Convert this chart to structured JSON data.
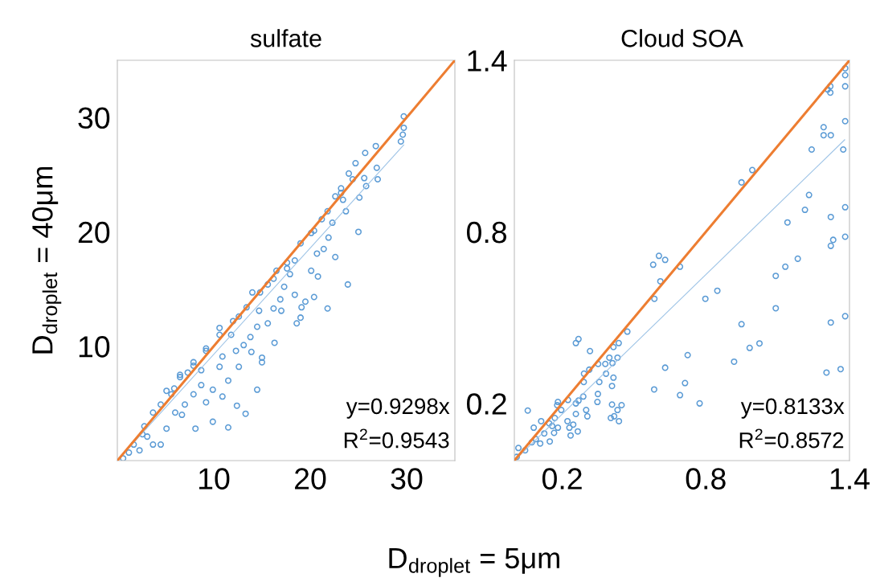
{
  "chart_data": [
    {
      "type": "scatter",
      "title": "sulfate",
      "ylabel": "D$_{droplet}$ = 40μm",
      "xlabel": "D$_{droplet}$ = 5μm",
      "xlim": [
        0,
        35
      ],
      "ylim": [
        0,
        35
      ],
      "xticks": [
        10,
        20,
        30
      ],
      "yticks": [
        10,
        20,
        30
      ],
      "grid": false,
      "annotations": [
        "y=0.9298x",
        "R$^{2}$=0.9543"
      ],
      "series": [
        {
          "marker": "circle",
          "color": "#5b9bd5",
          "x": [
            29.7,
            29.7,
            29.6,
            29.4,
            26.8,
            25.7,
            24.7,
            24.0,
            26.9,
            27.0,
            25.8,
            25.6,
            24.4,
            23.2,
            25.1,
            23.4,
            22.6,
            23.7,
            22.3,
            25.0,
            21.2,
            20.1,
            21.9,
            21.4,
            22.6,
            20.7,
            20.1,
            20.8,
            23.9,
            19.0,
            18.4,
            17.6,
            16.5,
            17.9,
            17.3,
            15.6,
            14.8,
            14.0,
            18.4,
            20.4,
            19.5,
            21.8,
            19.1,
            16.9,
            16.2,
            17.0,
            14.7,
            19.0,
            18.6,
            15.6,
            14.5,
            12.6,
            10.6,
            11.8,
            13.8,
            16.3,
            13.1,
            13.9,
            15.0,
            15.0,
            12.3,
            10.9,
            9.2,
            7.9,
            6.5,
            5.9,
            8.7,
            10.6,
            12.6,
            11.5,
            9.9,
            10.9,
            14.5,
            12.4,
            13.3,
            11.5,
            9.2,
            9.9,
            8.1,
            6.7,
            5.1,
            4.5,
            3.1,
            3.7,
            5.1,
            6.5,
            7.9,
            9.2,
            10.6,
            12.0,
            13.4,
            16.2,
            17.6,
            20.4,
            21.8,
            23.2,
            0.6,
            1.7,
            2.6,
            1.2,
            2.3,
            3.7,
            2.8,
            4.5,
            5.6,
            7.3,
            8.7,
            7.0,
            6.0,
            7.9
          ],
          "values": [
            30.1,
            29.1,
            28.5,
            27.9,
            27.5,
            26.9,
            26.0,
            25.1,
            25.6,
            24.6,
            24.0,
            24.7,
            24.6,
            23.8,
            23.0,
            22.8,
            23.1,
            21.8,
            20.8,
            20.0,
            21.1,
            19.9,
            19.5,
            18.5,
            17.8,
            18.1,
            16.6,
            16.1,
            15.4,
            19.0,
            17.5,
            16.8,
            16.6,
            16.3,
            15.2,
            15.4,
            14.7,
            14.7,
            14.5,
            14.3,
            13.9,
            13.3,
            13.4,
            14.1,
            13.3,
            13.1,
            13.1,
            12.5,
            12.0,
            12.0,
            11.7,
            12.6,
            11.6,
            11.0,
            10.8,
            10.3,
            10.1,
            9.5,
            9.0,
            8.6,
            9.6,
            9.1,
            9.6,
            8.6,
            7.5,
            6.3,
            7.9,
            8.2,
            8.2,
            7.0,
            6.2,
            5.6,
            6.2,
            4.8,
            4.1,
            2.9,
            5.1,
            3.4,
            2.8,
            4.0,
            2.8,
            1.4,
            2.1,
            4.2,
            6.1,
            7.3,
            8.3,
            9.8,
            11.0,
            12.2,
            13.4,
            15.9,
            17.3,
            20.1,
            21.8,
            23.4,
            0.2,
            1.4,
            2.3,
            0.7,
            0.9,
            1.4,
            3.0,
            4.9,
            5.8,
            7.7,
            6.6,
            4.9,
            4.2,
            5.8
          ]
        },
        {
          "type": "line",
          "color": "#9dc3e6",
          "x": [
            0,
            29.7
          ],
          "values": [
            0,
            27.6
          ]
        },
        {
          "type": "line",
          "color": "#ed7d31",
          "x": [
            0,
            35
          ],
          "values": [
            0,
            35
          ]
        }
      ]
    },
    {
      "type": "scatter",
      "title": "Cloud SOA",
      "xlim": [
        0,
        1.4
      ],
      "ylim": [
        0,
        1.4
      ],
      "xticks": [
        0.2,
        0.8,
        1.4
      ],
      "yticks": [
        0.2,
        0.8,
        1.4
      ],
      "grid": false,
      "annotations": [
        "y=0.8133x",
        "R$^{2}$=0.8572"
      ],
      "series": [
        {
          "marker": "circle",
          "color": "#5b9bd5",
          "x": [
            1.382,
            1.382,
            1.382,
            1.32,
            1.32,
            1.309,
            1.382,
            1.292,
            1.292,
            1.322,
            1.242,
            1.374,
            0.949,
            0.994,
            1.231,
            1.214,
            1.141,
            1.322,
            1.382,
            1.382,
            1.332,
            1.322,
            1.184,
            1.132,
            1.092,
            1.092,
            0.848,
            0.798,
            0.604,
            0.63,
            0.58,
            0.692,
            0.61,
            0.585,
            0.949,
            1.322,
            1.382,
            1.024,
            0.983,
            0.918,
            0.724,
            0.63,
            0.713,
            0.584,
            0.692,
            0.774,
            1.304,
            1.363,
            0.472,
            0.414,
            0.41,
            0.397,
            0.38,
            0.383,
            0.414,
            0.408,
            0.355,
            0.35,
            0.313,
            0.291,
            0.257,
            0.268,
            0.316,
            0.29,
            0.349,
            0.347,
            0.408,
            0.448,
            0.431,
            0.403,
            0.437,
            0.417,
            0.288,
            0.268,
            0.3,
            0.305,
            0.257,
            0.235,
            0.265,
            0.246,
            0.222,
            0.23,
            0.182,
            0.179,
            0.196,
            0.224,
            0.182,
            0.166,
            0.148,
            0.169,
            0.146,
            0.112,
            0.081,
            0.056,
            0.108,
            0.125,
            0.09,
            0.017,
            0.045,
            0.073,
            0.01,
            0.436,
            0.431,
            0.257,
            0.158
          ],
          "values": [
            1.372,
            1.348,
            1.309,
            1.309,
            1.287,
            1.298,
            1.187,
            1.166,
            1.138,
            1.138,
            1.088,
            1.088,
            0.973,
            1.016,
            0.929,
            0.877,
            0.833,
            0.852,
            0.886,
            0.783,
            0.772,
            0.751,
            0.706,
            0.678,
            0.646,
            0.533,
            0.594,
            0.566,
            0.716,
            0.702,
            0.685,
            0.678,
            0.627,
            0.566,
            0.477,
            0.483,
            0.505,
            0.41,
            0.394,
            0.346,
            0.369,
            0.325,
            0.271,
            0.249,
            0.229,
            0.2,
            0.308,
            0.32,
            0.451,
            0.397,
            0.341,
            0.36,
            0.338,
            0.304,
            0.29,
            0.261,
            0.275,
            0.338,
            0.318,
            0.304,
            0.411,
            0.425,
            0.383,
            0.275,
            0.233,
            0.205,
            0.196,
            0.194,
            0.177,
            0.149,
            0.138,
            0.155,
            0.224,
            0.21,
            0.177,
            0.155,
            0.163,
            0.088,
            0.102,
            0.126,
            0.138,
            0.115,
            0.205,
            0.194,
            0.177,
            0.212,
            0.115,
            0.097,
            0.067,
            0.149,
            0.13,
            0.138,
            0.115,
            0.175,
            0.06,
            0.095,
            0.075,
            0.044,
            0.036,
            0.064,
            0.013,
            0.411,
            0.36,
            0.2,
            0.121
          ]
        },
        {
          "type": "line",
          "color": "#9dc3e6",
          "x": [
            0,
            1.38
          ],
          "values": [
            0,
            1.122
          ]
        },
        {
          "type": "line",
          "color": "#ed7d31",
          "x": [
            0,
            1.4
          ],
          "values": [
            0,
            1.4
          ]
        }
      ]
    }
  ]
}
